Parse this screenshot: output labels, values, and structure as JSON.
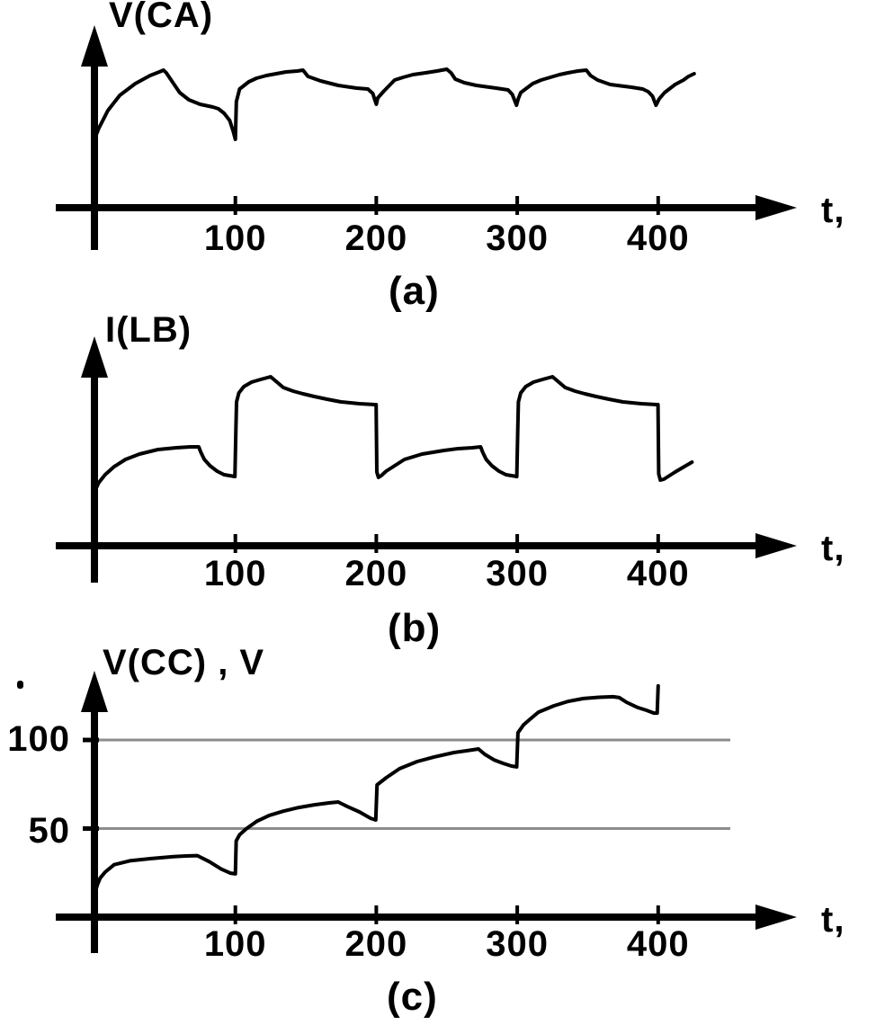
{
  "figure": {
    "background_color": "#ffffff",
    "ink_color": "#000000",
    "gridline_color": "#8c8c8c",
    "description": "Three stacked hand-drawn-style oscillogram panels (a), (b), (c) sharing the same time axis style with arrowed axes"
  },
  "chart_data": [
    {
      "panel": "a",
      "type": "line",
      "caption": "(a)",
      "ylabel": "V(CA)",
      "xlabel": "t,",
      "x_range": [
        0,
        455
      ],
      "x_ticks": [
        100,
        200,
        300,
        400
      ],
      "x_tick_labels": [
        "100",
        "200",
        "300",
        "400"
      ],
      "y_axis_labeled": false,
      "y_unit": "arbitrary units (axis unlabeled)",
      "grid": false,
      "points": [
        [
          0,
          76
        ],
        [
          3,
          88
        ],
        [
          9.5,
          108
        ],
        [
          18,
          125
        ],
        [
          29,
          138
        ],
        [
          39.5,
          147
        ],
        [
          46,
          151
        ],
        [
          49,
          153
        ],
        [
          51,
          150
        ],
        [
          54,
          143
        ],
        [
          60.5,
          128
        ],
        [
          67,
          120
        ],
        [
          75,
          115
        ],
        [
          84,
          112
        ],
        [
          88,
          110
        ],
        [
          92,
          105
        ],
        [
          96,
          97
        ],
        [
          98.5,
          85
        ],
        [
          100,
          76
        ],
        [
          100.7,
          118
        ],
        [
          103,
          132
        ],
        [
          109.5,
          140
        ],
        [
          115,
          144
        ],
        [
          122,
          147
        ],
        [
          129,
          149
        ],
        [
          136,
          151
        ],
        [
          144,
          152
        ],
        [
          148,
          153
        ],
        [
          151.5,
          146
        ],
        [
          160.5,
          141
        ],
        [
          173,
          136
        ],
        [
          186,
          133
        ],
        [
          194,
          132
        ],
        [
          197.5,
          127
        ],
        [
          200,
          115
        ],
        [
          201,
          122
        ],
        [
          205,
          129
        ],
        [
          213,
          142
        ],
        [
          219,
          145
        ],
        [
          226,
          148
        ],
        [
          235,
          150
        ],
        [
          243,
          152
        ],
        [
          250,
          154
        ],
        [
          253,
          150
        ],
        [
          256,
          143
        ],
        [
          262.5,
          139
        ],
        [
          271,
          136
        ],
        [
          285,
          133
        ],
        [
          293.5,
          131
        ],
        [
          296.5,
          126
        ],
        [
          299.5,
          114
        ],
        [
          300.7,
          121
        ],
        [
          302.5,
          128
        ],
        [
          311,
          138
        ],
        [
          317,
          142
        ],
        [
          323.5,
          145
        ],
        [
          330,
          148
        ],
        [
          336,
          150
        ],
        [
          343,
          152
        ],
        [
          349,
          153
        ],
        [
          352,
          147
        ],
        [
          357,
          142
        ],
        [
          366,
          137
        ],
        [
          381,
          134
        ],
        [
          389,
          132
        ],
        [
          393,
          129
        ],
        [
          396,
          124
        ],
        [
          398.5,
          114
        ],
        [
          400.7,
          121
        ],
        [
          404.5,
          128
        ],
        [
          412,
          137
        ],
        [
          418,
          142
        ],
        [
          421.5,
          146
        ],
        [
          425.5,
          149
        ]
      ]
    },
    {
      "panel": "b",
      "type": "line",
      "caption": "(b)",
      "ylabel": "I(LB)",
      "xlabel": "t,",
      "x_range": [
        0,
        455
      ],
      "x_ticks": [
        100,
        200,
        300,
        400
      ],
      "x_tick_labels": [
        "100",
        "200",
        "300",
        "400"
      ],
      "y_axis_labeled": false,
      "y_unit": "arbitrary units (axis unlabeled)",
      "grid": false,
      "points": [
        [
          0,
          60
        ],
        [
          3,
          70
        ],
        [
          7.5,
          79
        ],
        [
          14,
          88
        ],
        [
          22,
          96
        ],
        [
          32,
          102
        ],
        [
          45,
          107
        ],
        [
          58,
          109
        ],
        [
          68,
          110
        ],
        [
          74,
          110
        ],
        [
          75.5,
          104
        ],
        [
          78,
          96
        ],
        [
          82,
          89
        ],
        [
          87,
          83
        ],
        [
          92,
          79
        ],
        [
          96,
          78
        ],
        [
          99.7,
          77
        ],
        [
          100.4,
          130
        ],
        [
          100.8,
          160
        ],
        [
          102.5,
          170
        ],
        [
          106,
          177
        ],
        [
          111.5,
          182
        ],
        [
          118,
          185
        ],
        [
          125,
          188
        ],
        [
          128,
          184
        ],
        [
          134,
          176
        ],
        [
          141,
          172
        ],
        [
          148,
          169
        ],
        [
          156,
          166
        ],
        [
          165,
          163
        ],
        [
          175,
          160
        ],
        [
          188,
          158
        ],
        [
          199,
          157
        ],
        [
          199.9,
          157
        ],
        [
          200.4,
          82
        ],
        [
          201.5,
          76
        ],
        [
          203.5,
          78
        ],
        [
          207,
          83
        ],
        [
          212,
          88
        ],
        [
          220,
          96
        ],
        [
          232.5,
          102
        ],
        [
          248,
          106
        ],
        [
          258,
          108
        ],
        [
          268,
          109
        ],
        [
          274,
          110
        ],
        [
          275.5,
          104
        ],
        [
          278,
          96
        ],
        [
          282,
          89
        ],
        [
          287,
          83
        ],
        [
          292,
          79
        ],
        [
          296,
          78
        ],
        [
          299.7,
          77
        ],
        [
          300.4,
          130
        ],
        [
          300.8,
          160
        ],
        [
          302.5,
          170
        ],
        [
          306,
          177
        ],
        [
          311.5,
          182
        ],
        [
          318,
          185
        ],
        [
          325,
          188
        ],
        [
          328,
          184
        ],
        [
          334,
          176
        ],
        [
          341,
          172
        ],
        [
          348,
          169
        ],
        [
          356,
          166
        ],
        [
          365,
          163
        ],
        [
          375,
          160
        ],
        [
          388,
          158
        ],
        [
          399,
          157
        ],
        [
          399.9,
          157
        ],
        [
          400.4,
          80
        ],
        [
          401.5,
          73
        ],
        [
          404,
          74
        ],
        [
          407,
          77
        ],
        [
          412,
          82
        ],
        [
          418.5,
          88
        ],
        [
          424,
          93
        ]
      ]
    },
    {
      "panel": "c",
      "type": "line",
      "caption": "(c)",
      "ylabel": "V(CC) , V",
      "xlabel": "t,",
      "x_range": [
        0,
        455
      ],
      "x_ticks": [
        100,
        200,
        300,
        400
      ],
      "x_tick_labels": [
        "100",
        "200",
        "300",
        "400"
      ],
      "y_ticks": [
        100,
        50
      ],
      "y_tick_labels": [
        "100",
        "50"
      ],
      "y_unit": "V",
      "ylim": [
        0,
        135
      ],
      "grid": true,
      "gridlines_at": [
        100,
        50
      ],
      "points": [
        [
          0,
          12
        ],
        [
          2,
          18
        ],
        [
          4,
          22
        ],
        [
          7.5,
          25.4
        ],
        [
          14,
          29.6
        ],
        [
          25,
          31.8
        ],
        [
          39.5,
          33
        ],
        [
          56,
          34.1
        ],
        [
          65,
          34.5
        ],
        [
          73,
          34.7
        ],
        [
          81.5,
          31.3
        ],
        [
          90,
          27.1
        ],
        [
          96.5,
          24.8
        ],
        [
          100,
          24.4
        ],
        [
          100.6,
          43
        ],
        [
          103,
          46.5
        ],
        [
          108,
          50
        ],
        [
          115,
          54
        ],
        [
          124,
          57.4
        ],
        [
          134,
          59.8
        ],
        [
          145,
          61.9
        ],
        [
          156,
          63.4
        ],
        [
          167,
          64.5
        ],
        [
          173,
          65
        ],
        [
          179.5,
          62.4
        ],
        [
          188,
          59.4
        ],
        [
          196,
          55.8
        ],
        [
          199.6,
          54.8
        ],
        [
          200.5,
          74.6
        ],
        [
          207,
          78.7
        ],
        [
          216.5,
          83.8
        ],
        [
          229,
          87.8
        ],
        [
          241,
          90.4
        ],
        [
          255,
          92.9
        ],
        [
          264,
          93.9
        ],
        [
          272.5,
          94.9
        ],
        [
          277,
          91.9
        ],
        [
          283.5,
          88.8
        ],
        [
          290,
          86.8
        ],
        [
          296,
          85.3
        ],
        [
          299.6,
          84.8
        ],
        [
          300.5,
          104.1
        ],
        [
          304.5,
          108.6
        ],
        [
          309,
          111.7
        ],
        [
          315,
          115.7
        ],
        [
          326,
          119.3
        ],
        [
          336,
          121.8
        ],
        [
          347,
          123.4
        ],
        [
          358,
          124.1
        ],
        [
          368,
          124.4
        ],
        [
          372.5,
          123.9
        ],
        [
          377.5,
          121.3
        ],
        [
          385.5,
          118.3
        ],
        [
          391.5,
          116.8
        ],
        [
          397,
          115.2
        ],
        [
          399.3,
          115.2
        ],
        [
          400,
          130.5
        ]
      ]
    }
  ]
}
